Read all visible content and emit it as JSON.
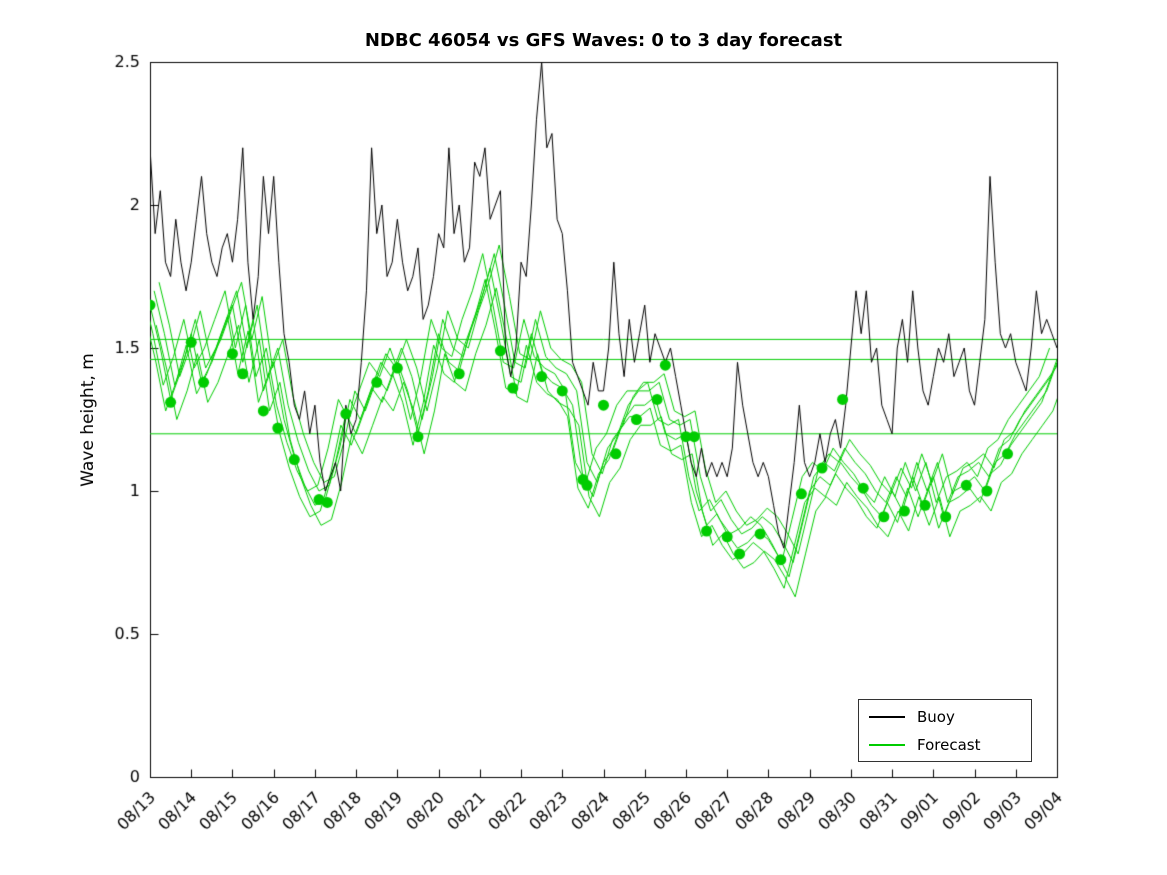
{
  "chart_data": {
    "type": "line",
    "title": "NDBC 46054 vs GFS Waves: 0 to 3 day forecast",
    "xlabel": "",
    "ylabel": "Wave height, m",
    "ylim": [
      0,
      2.5
    ],
    "yticks": [
      0,
      0.5,
      1,
      1.5,
      2,
      2.5
    ],
    "ytick_labels": [
      "0",
      "0.5",
      "1",
      "1.5",
      "2",
      "2.5"
    ],
    "x_range_days": [
      0,
      22
    ],
    "xtick_labels": [
      "08/13",
      "08/14",
      "08/15",
      "08/16",
      "08/17",
      "08/18",
      "08/19",
      "08/20",
      "08/21",
      "08/22",
      "08/23",
      "08/24",
      "08/25",
      "08/26",
      "08/27",
      "08/28",
      "08/29",
      "08/30",
      "08/31",
      "09/01",
      "09/02",
      "09/03",
      "09/04"
    ],
    "grid": false,
    "legend": {
      "position": "lower right",
      "entries": [
        {
          "label": "Buoy",
          "color": "#000000"
        },
        {
          "label": "Forecast",
          "color": "#00cc00"
        }
      ]
    },
    "series": {
      "buoy": {
        "name": "Buoy",
        "color": "#000000",
        "dt_days": 0.125,
        "y": [
          2.2,
          1.9,
          2.05,
          1.8,
          1.75,
          1.95,
          1.8,
          1.7,
          1.8,
          1.95,
          2.1,
          1.9,
          1.8,
          1.75,
          1.85,
          1.9,
          1.8,
          1.95,
          2.2,
          1.8,
          1.6,
          1.75,
          2.1,
          1.9,
          2.1,
          1.8,
          1.55,
          1.45,
          1.3,
          1.25,
          1.35,
          1.2,
          1.3,
          1.1,
          1.0,
          1.05,
          1.1,
          1.0,
          1.3,
          1.2,
          1.25,
          1.45,
          1.7,
          2.2,
          1.9,
          2.0,
          1.75,
          1.8,
          1.95,
          1.8,
          1.7,
          1.75,
          1.85,
          1.6,
          1.65,
          1.75,
          1.9,
          1.85,
          2.2,
          1.9,
          2.0,
          1.8,
          1.85,
          2.15,
          2.1,
          2.2,
          1.95,
          2.0,
          2.05,
          1.5,
          1.4,
          1.5,
          1.8,
          1.75,
          2.0,
          2.3,
          2.5,
          2.2,
          2.25,
          1.95,
          1.9,
          1.7,
          1.45,
          1.4,
          1.35,
          1.3,
          1.45,
          1.35,
          1.35,
          1.5,
          1.8,
          1.55,
          1.4,
          1.6,
          1.45,
          1.55,
          1.65,
          1.45,
          1.55,
          1.5,
          1.45,
          1.5,
          1.4,
          1.3,
          1.2,
          1.1,
          1.05,
          1.15,
          1.05,
          1.1,
          1.05,
          1.1,
          1.05,
          1.15,
          1.45,
          1.3,
          1.2,
          1.1,
          1.05,
          1.1,
          1.05,
          0.95,
          0.85,
          0.8,
          0.95,
          1.1,
          1.3,
          1.1,
          1.05,
          1.1,
          1.2,
          1.1,
          1.2,
          1.25,
          1.15,
          1.3,
          1.5,
          1.7,
          1.55,
          1.7,
          1.45,
          1.5,
          1.3,
          1.25,
          1.2,
          1.5,
          1.6,
          1.45,
          1.7,
          1.5,
          1.35,
          1.3,
          1.4,
          1.5,
          1.45,
          1.55,
          1.4,
          1.45,
          1.5,
          1.35,
          1.3,
          1.45,
          1.6,
          2.1,
          1.8,
          1.55,
          1.5,
          1.55,
          1.45,
          1.4,
          1.35,
          1.5,
          1.7,
          1.55,
          1.6,
          1.55,
          1.5
        ]
      },
      "forecast_center": {
        "name": "Forecast",
        "color": "#00cc00",
        "dt_days": 0.25,
        "y": [
          1.65,
          1.5,
          1.32,
          1.42,
          1.55,
          1.38,
          1.45,
          1.55,
          1.65,
          1.45,
          1.6,
          1.35,
          1.45,
          1.25,
          1.12,
          1.02,
          0.95,
          0.97,
          1.1,
          1.27,
          1.2,
          1.3,
          1.4,
          1.35,
          1.45,
          1.35,
          1.2,
          1.35,
          1.55,
          1.45,
          1.42,
          1.55,
          1.65,
          1.78,
          1.6,
          1.4,
          1.38,
          1.55,
          1.42,
          1.38,
          1.36,
          1.3,
          1.05,
          0.98,
          1.1,
          1.15,
          1.25,
          1.3,
          1.3,
          1.33,
          1.2,
          1.18,
          1.2,
          1.0,
          0.88,
          0.92,
          0.85,
          0.8,
          0.82,
          0.86,
          0.83,
          0.77,
          0.7,
          0.85,
          1.0,
          1.05,
          1.02,
          1.1,
          1.05,
          1.01,
          0.95,
          0.91,
          1.0,
          0.93,
          1.05,
          0.95,
          1.05,
          0.91,
          1.0,
          1.02,
          1.05,
          1.0,
          1.1,
          1.13,
          1.2,
          1.25,
          1.3,
          1.35,
          1.45
        ]
      },
      "forecast_bundle_offsets": [
        {
          "dx": 0,
          "dy": 0
        },
        {
          "dx": 0.1,
          "dy": 0.05
        },
        {
          "dx": -0.12,
          "dy": -0.04
        },
        {
          "dx": 0.22,
          "dy": 0.08
        },
        {
          "dx": -0.18,
          "dy": 0.05
        },
        {
          "dx": 0.15,
          "dy": -0.07
        }
      ],
      "forecast_hlines": [
        1.2,
        1.46,
        1.53
      ],
      "forecast_markers": {
        "color": "#00cc00",
        "x": [
          0,
          0.5,
          1,
          1.3,
          2,
          2.25,
          2.75,
          3.1,
          3.5,
          4.1,
          4.3,
          4.75,
          5.5,
          6,
          6.5,
          7.5,
          8.5,
          8.8,
          9.5,
          10,
          10.5,
          10.6,
          11,
          11.3,
          11.8,
          12.3,
          12.5,
          13,
          13.2,
          13.5,
          14,
          14.3,
          14.8,
          15.3,
          15.8,
          16.3,
          16.8,
          17.3,
          17.8,
          18.3,
          18.8,
          19.3,
          19.8,
          20.3,
          20.8
        ],
        "y": [
          1.65,
          1.31,
          1.52,
          1.38,
          1.48,
          1.41,
          1.28,
          1.22,
          1.11,
          0.97,
          0.96,
          1.27,
          1.38,
          1.43,
          1.19,
          1.41,
          1.49,
          1.36,
          1.4,
          1.35,
          1.04,
          1.02,
          1.3,
          1.13,
          1.25,
          1.32,
          1.44,
          1.19,
          1.19,
          0.86,
          0.84,
          0.78,
          0.85,
          0.76,
          0.99,
          1.08,
          1.32,
          1.01,
          0.91,
          0.93,
          0.95,
          0.91,
          1.02,
          1.0,
          1.13
        ]
      }
    }
  }
}
